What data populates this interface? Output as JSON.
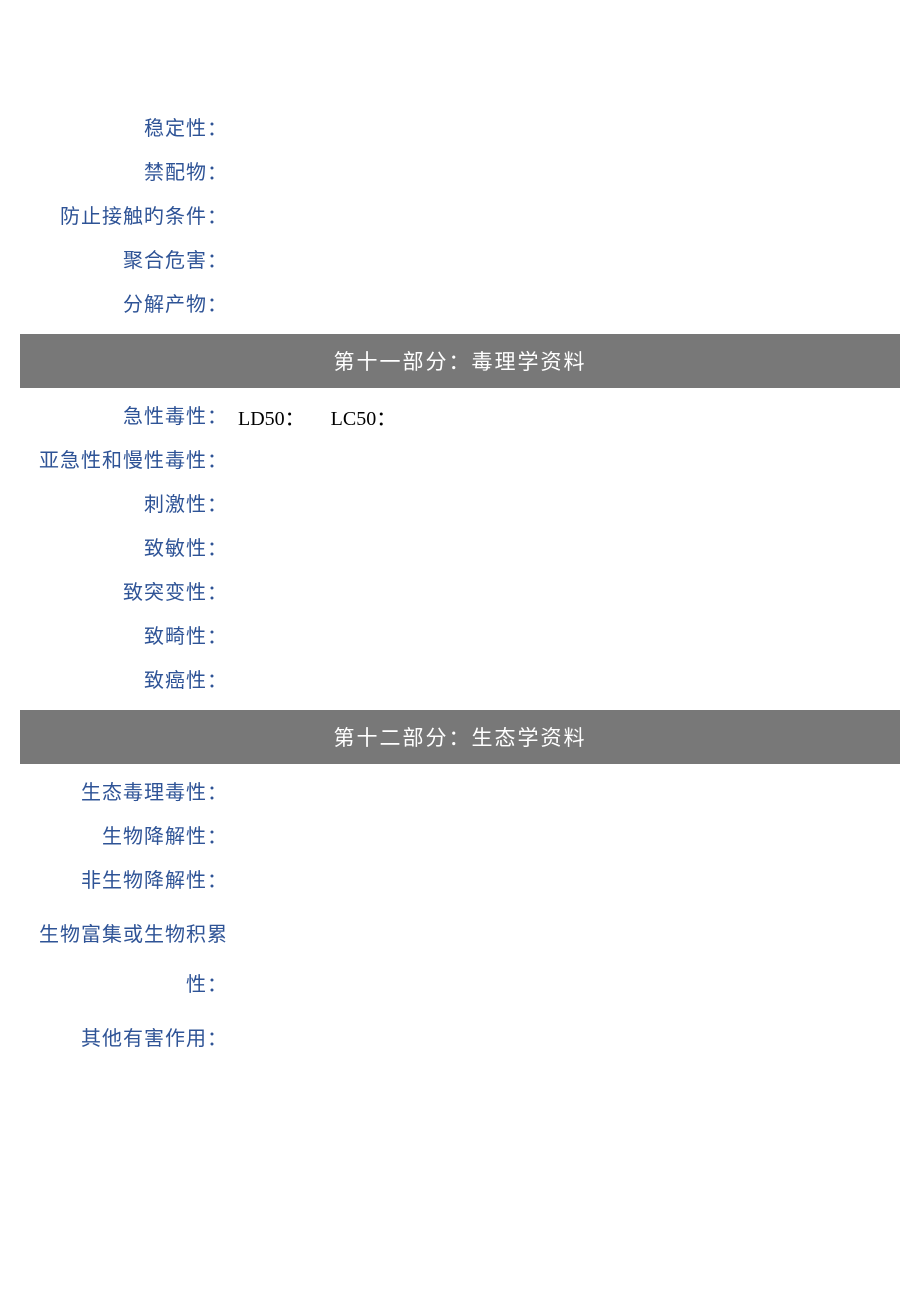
{
  "section10": {
    "rows": [
      {
        "label": "稳定性：",
        "value": ""
      },
      {
        "label": "禁配物：",
        "value": ""
      },
      {
        "label": "防止接触旳条件：",
        "value": ""
      },
      {
        "label": "聚合危害：",
        "value": ""
      },
      {
        "label": "分解产物：",
        "value": ""
      }
    ]
  },
  "section11": {
    "header": "第十一部分：毒理学资料",
    "rows": [
      {
        "label": "急性毒性：",
        "values": [
          "LD50：",
          "LC50："
        ]
      },
      {
        "label": "亚急性和慢性毒性：",
        "value": ""
      },
      {
        "label": "刺激性：",
        "value": ""
      },
      {
        "label": "致敏性：",
        "value": ""
      },
      {
        "label": "致突变性：",
        "value": ""
      },
      {
        "label": "致畸性：",
        "value": ""
      },
      {
        "label": "致癌性：",
        "value": ""
      }
    ]
  },
  "section12": {
    "header": "第十二部分：生态学资料",
    "rows": [
      {
        "label": "生态毒理毒性：",
        "value": ""
      },
      {
        "label": "生物降解性：",
        "value": ""
      },
      {
        "label": "非生物降解性：",
        "value": ""
      },
      {
        "label": "生物富集或生物积累性：",
        "value": "",
        "multiline": true
      },
      {
        "label": "其他有害作用：",
        "value": ""
      }
    ]
  },
  "colors": {
    "label_color": "#2e5396",
    "header_bg": "#787878",
    "header_text": "#ffffff",
    "value_text": "#000000",
    "page_bg": "#ffffff"
  },
  "typography": {
    "label_fontsize": 20,
    "header_fontsize": 21,
    "value_fontsize": 20
  }
}
